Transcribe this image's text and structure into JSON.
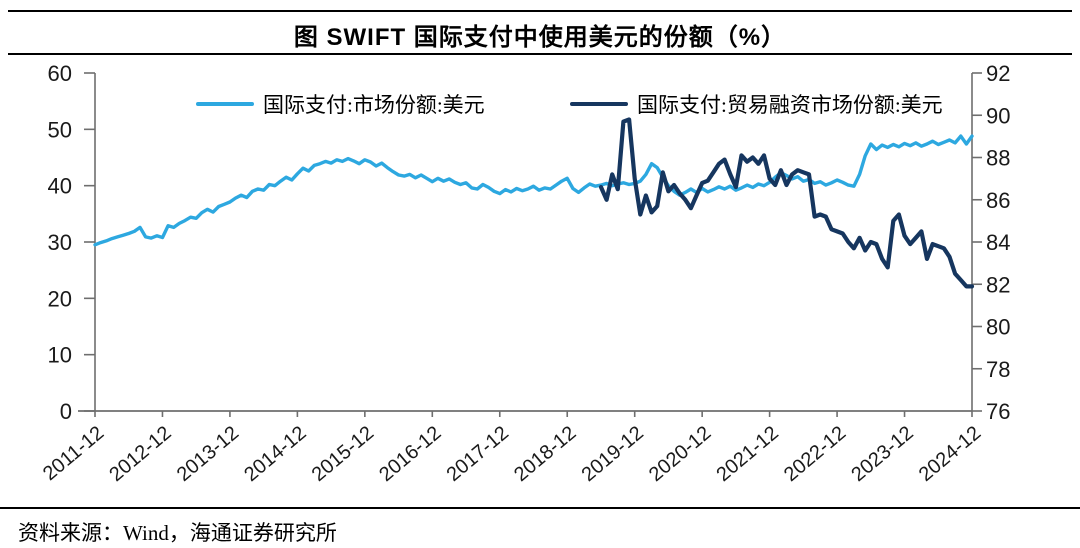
{
  "title": "图  SWIFT 国际支付中使用美元的份额（%）",
  "source": "资料来源：Wind，海通证券研究所",
  "chart_data": {
    "type": "line",
    "title": "图 SWIFT 国际支付中使用美元的份额（%）",
    "xlabel": "",
    "ylabel_left": "",
    "ylabel_right": "",
    "grid": false,
    "legend_position": "top-inside",
    "x_tick_labels": [
      "2011-12",
      "2012-12",
      "2013-12",
      "2014-12",
      "2015-12",
      "2016-12",
      "2017-12",
      "2018-12",
      "2019-12",
      "2020-12",
      "2021-12",
      "2022-12",
      "2023-12",
      "2024-12"
    ],
    "x_months_total": 156,
    "left_axis": {
      "ticks": [
        0,
        10,
        20,
        30,
        40,
        50,
        60
      ],
      "range": [
        0,
        60
      ]
    },
    "right_axis": {
      "ticks": [
        76,
        78,
        80,
        82,
        84,
        86,
        88,
        90,
        92
      ],
      "range": [
        76,
        92
      ]
    },
    "axis_color": "#6e6e6e",
    "series": [
      {
        "name": "国际支付:市场份额:美元",
        "axis": "left",
        "color": "#2DA8E0",
        "start_month": "2011-12",
        "start_index": 0,
        "values": [
          29.5,
          29.9,
          30.2,
          30.6,
          30.9,
          31.2,
          31.5,
          31.9,
          32.6,
          30.9,
          30.7,
          31.1,
          30.8,
          32.9,
          32.6,
          33.3,
          33.8,
          34.4,
          34.2,
          35.2,
          35.8,
          35.3,
          36.3,
          36.7,
          37.1,
          37.8,
          38.3,
          37.9,
          39.0,
          39.4,
          39.2,
          40.2,
          40.0,
          40.8,
          41.5,
          41.0,
          42.1,
          43.1,
          42.6,
          43.6,
          43.9,
          44.3,
          44.0,
          44.6,
          44.3,
          44.8,
          44.4,
          43.9,
          44.6,
          44.2,
          43.5,
          44.0,
          43.2,
          42.5,
          41.9,
          41.7,
          42.0,
          41.4,
          41.9,
          41.3,
          40.7,
          41.3,
          40.8,
          41.2,
          40.6,
          40.2,
          40.5,
          39.6,
          39.4,
          40.2,
          39.7,
          39.0,
          38.6,
          39.3,
          38.9,
          39.5,
          39.1,
          39.4,
          39.9,
          39.2,
          39.6,
          39.4,
          40.1,
          40.8,
          41.3,
          39.5,
          38.8,
          39.6,
          40.3,
          39.9,
          40.1,
          40.4,
          40.0,
          40.3,
          40.5,
          40.2,
          40.4,
          40.8,
          42.0,
          43.9,
          43.2,
          41.5,
          40.0,
          39.0,
          38.3,
          38.8,
          39.4,
          38.8,
          39.5,
          38.9,
          39.3,
          39.8,
          39.4,
          39.9,
          39.2,
          39.6,
          40.1,
          39.7,
          40.3,
          40.0,
          40.6,
          41.5,
          42.3,
          41.8,
          41.2,
          41.6,
          40.8,
          41.1,
          40.4,
          40.7,
          40.1,
          40.5,
          41.0,
          40.6,
          40.1,
          39.9,
          42.0,
          45.3,
          47.4,
          46.4,
          47.2,
          46.8,
          47.3,
          46.9,
          47.5,
          47.1,
          47.6,
          47.0,
          47.4,
          47.9,
          47.3,
          47.7,
          48.1,
          47.6,
          48.8,
          47.4,
          48.8
        ]
      },
      {
        "name": "国际支付:贸易融资市场份额:美元",
        "axis": "right",
        "color": "#16365F",
        "start_month": "2019-06",
        "start_index": 90,
        "values": [
          86.6,
          86.0,
          87.2,
          86.5,
          89.7,
          89.8,
          87.0,
          85.3,
          86.2,
          85.4,
          85.7,
          87.3,
          86.4,
          86.7,
          86.3,
          86.0,
          85.6,
          86.2,
          86.8,
          86.9,
          87.3,
          87.7,
          87.9,
          87.2,
          86.6,
          88.1,
          87.8,
          88.0,
          87.7,
          88.1,
          87.0,
          86.7,
          87.4,
          86.7,
          87.2,
          87.4,
          87.3,
          87.2,
          85.2,
          85.3,
          85.2,
          84.6,
          84.5,
          84.4,
          84.0,
          83.7,
          84.2,
          83.6,
          84.0,
          83.9,
          83.2,
          82.8,
          85.0,
          85.3,
          84.3,
          83.9,
          84.2,
          84.5,
          83.2,
          83.9,
          83.8,
          83.7,
          83.3,
          82.5,
          82.2,
          81.9,
          81.9
        ]
      }
    ]
  }
}
